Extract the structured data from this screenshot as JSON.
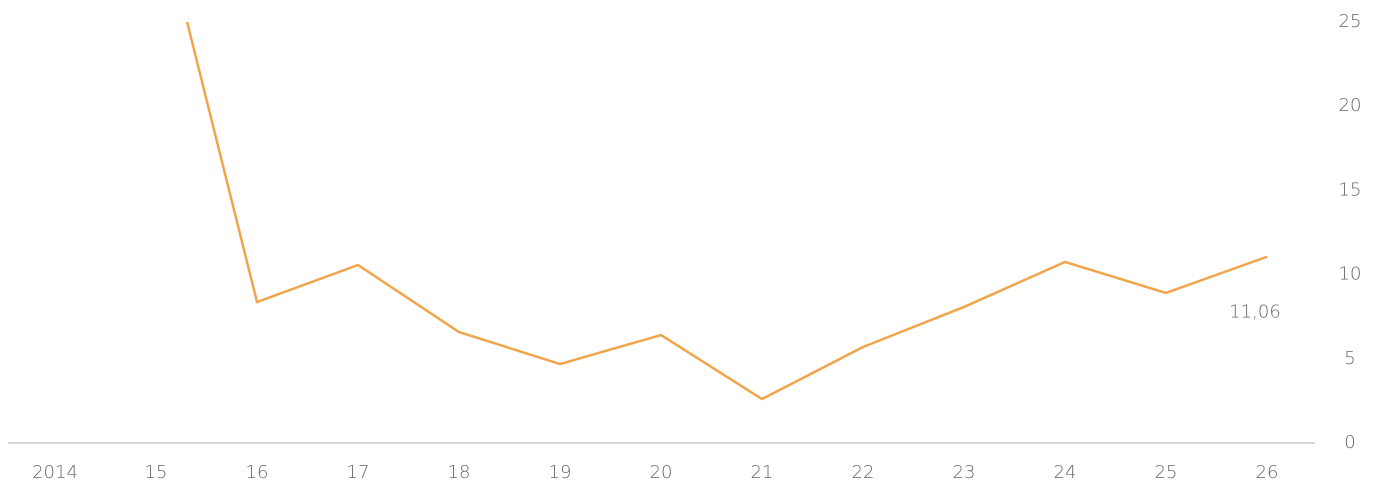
{
  "chart_data": {
    "type": "line",
    "categories": [
      "2014",
      "15",
      "16",
      "17",
      "18",
      "19",
      "20",
      "21",
      "22",
      "23",
      "24",
      "25",
      "26"
    ],
    "series": [
      {
        "color": "#f0a54a",
        "values": [
          null,
          32.4,
          8.37,
          10.57,
          6.59,
          4.69,
          6.41,
          2.61,
          5.7,
          8.08,
          10.75,
          8.91,
          11.06
        ],
        "value_labels": [
          null,
          null,
          null,
          null,
          null,
          null,
          null,
          null,
          null,
          null,
          null,
          null,
          "11,06"
        ]
      }
    ],
    "ylim": [
      0,
      25
    ],
    "yticks": [
      0,
      5,
      10,
      15,
      20,
      25
    ],
    "grid": false
  }
}
